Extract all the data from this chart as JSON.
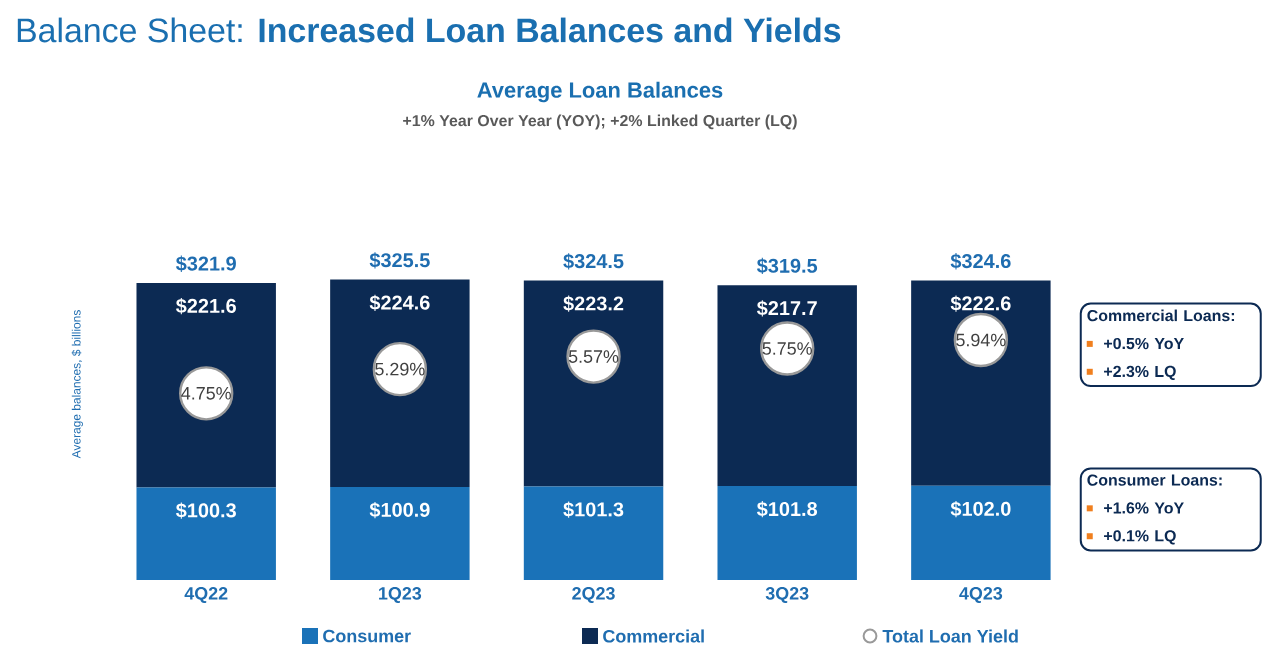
{
  "chart_data": {
    "type": "bar",
    "stacked": true,
    "title": "Balance Sheet: **Increased Loan Balances and Yields**",
    "subtitle": "Average Loan Balances",
    "ylabel": "Average balances, $ billions",
    "categories": [
      "4Q22",
      "1Q23",
      "2Q23",
      "3Q23",
      "4Q23"
    ],
    "tick_labels": "x",
    "legend": "bottom",
    "series": [
      {
        "name": "Consumer",
        "color": "#1a72b8",
        "values": [
          100.3,
          100.9,
          101.3,
          101.8,
          102.0
        ],
        "value_labels": [
          "$100.3",
          "$100.9",
          "$101.3",
          "$101.8",
          "$102.0"
        ]
      },
      {
        "name": "Commercial",
        "color": "#0c2a53",
        "values": [
          221.6,
          224.6,
          223.2,
          217.7,
          222.6
        ],
        "value_labels": [
          "$221.6",
          "$224.6",
          "$223.2",
          "$217.7",
          "$222.6"
        ]
      },
      {
        "name": "Total Loan Yield",
        "type": "scatter",
        "axis": "y2",
        "marker": "circle",
        "color": "#999999",
        "values": [
          4.75,
          5.29,
          5.57,
          5.75,
          5.94
        ],
        "value_labels": [
          "4.75%",
          "5.29%",
          "5.57%",
          "5.75%",
          "5.94%"
        ]
      }
    ],
    "totals": [
      "$321.9",
      "$325.5",
      "$324.5",
      "$319.5",
      "$324.6"
    ],
    "annotations": [
      "+1% Year Over Year (YOY); +2% Linked Quarter (LQ)",
      "Commercial Loans:",
      "+0.5% YoY",
      "+2.3% LQ",
      "Consumer Loans:",
      "+1.6% YoY",
      "+0.1% LQ"
    ]
  }
}
